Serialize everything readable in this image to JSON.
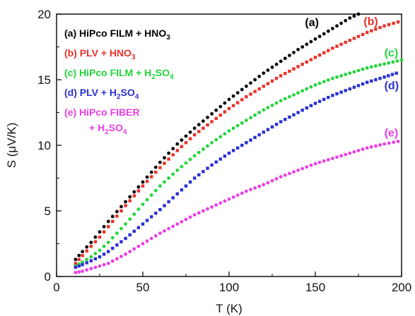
{
  "chart_data": {
    "type": "scatter",
    "xlabel": "T (K)",
    "ylabel": "S (μV/K)",
    "xlim": [
      0,
      200
    ],
    "ylim": [
      0,
      20
    ],
    "xticks": [
      0,
      50,
      100,
      150,
      200
    ],
    "yticks": [
      0,
      5,
      10,
      15,
      20
    ],
    "grid": false,
    "legend_placement": "top-left",
    "series": [
      {
        "id": "a",
        "name": "(a) HiPco FILM + HNO3",
        "legend_parts": [
          [
            "(a) HiPco FILM + HNO",
            "normal"
          ],
          [
            "3",
            "sub"
          ]
        ],
        "label": "(a)",
        "color": "#000000",
        "marker": "circle",
        "x": [
          11,
          15,
          20,
          25,
          30,
          40,
          50,
          60,
          70,
          80,
          90,
          100,
          110,
          120,
          130,
          140,
          150,
          160,
          170,
          175
        ],
        "y": [
          1.3,
          1.9,
          2.6,
          3.4,
          4.2,
          5.7,
          7.2,
          8.7,
          10.1,
          11.3,
          12.4,
          13.5,
          14.5,
          15.5,
          16.4,
          17.3,
          18.1,
          18.9,
          19.7,
          20.0
        ]
      },
      {
        "id": "b",
        "name": "(b) PLV + HNO3",
        "legend_parts": [
          [
            "(b) PLV + HNO",
            "normal"
          ],
          [
            "3",
            "sub"
          ]
        ],
        "label": "(b)",
        "color": "#e8332a",
        "marker": "square",
        "x": [
          11,
          15,
          20,
          25,
          30,
          40,
          50,
          60,
          70,
          80,
          90,
          100,
          110,
          120,
          130,
          140,
          150,
          160,
          170,
          180,
          190,
          198
        ],
        "y": [
          1.0,
          1.6,
          2.3,
          3.0,
          3.8,
          5.4,
          6.9,
          8.3,
          9.6,
          10.8,
          11.8,
          12.8,
          13.7,
          14.5,
          15.3,
          16.0,
          16.7,
          17.4,
          18.0,
          18.6,
          19.1,
          19.4
        ]
      },
      {
        "id": "c",
        "name": "(c) HiPco FILM + H2SO4",
        "legend_parts": [
          [
            "(c) HiPco FILM + H",
            "normal"
          ],
          [
            "2",
            "sub"
          ],
          [
            "SO",
            "normal"
          ],
          [
            "4",
            "sub"
          ]
        ],
        "label": "(c)",
        "color": "#22d63a",
        "marker": "circle",
        "x": [
          11,
          15,
          20,
          25,
          30,
          40,
          50,
          60,
          70,
          80,
          90,
          100,
          110,
          120,
          130,
          140,
          150,
          160,
          170,
          180,
          190,
          200
        ],
        "y": [
          0.8,
          1.1,
          1.5,
          2.0,
          2.6,
          4.0,
          5.5,
          6.9,
          8.1,
          9.2,
          10.2,
          11.1,
          11.9,
          12.7,
          13.4,
          14.0,
          14.6,
          15.1,
          15.5,
          15.9,
          16.2,
          16.5
        ]
      },
      {
        "id": "d",
        "name": "(d) PLV + H2SO4",
        "legend_parts": [
          [
            "(d) PLV + H",
            "normal"
          ],
          [
            "2",
            "sub"
          ],
          [
            "SO",
            "normal"
          ],
          [
            "4",
            "sub"
          ]
        ],
        "label": "(d)",
        "color": "#2a2fd4",
        "marker": "square",
        "x": [
          11,
          15,
          20,
          25,
          30,
          40,
          50,
          60,
          70,
          80,
          90,
          100,
          110,
          120,
          130,
          140,
          150,
          160,
          170,
          180,
          190,
          197
        ],
        "y": [
          0.7,
          0.9,
          1.2,
          1.5,
          1.9,
          2.9,
          4.0,
          5.1,
          6.3,
          7.5,
          8.5,
          9.4,
          10.2,
          11.0,
          11.8,
          12.5,
          13.2,
          13.8,
          14.3,
          14.8,
          15.2,
          15.5
        ]
      },
      {
        "id": "e",
        "name": "(e) HiPco FIBER + H2SO4",
        "legend_parts": [
          [
            "(e) HiPco FIBER",
            "normal"
          ]
        ],
        "legend_parts_line2": [
          [
            "+ H",
            "normal"
          ],
          [
            "2",
            "sub"
          ],
          [
            "SO",
            "normal"
          ],
          [
            "4",
            "sub"
          ]
        ],
        "label": "(e)",
        "color": "#ea3fe6",
        "marker": "circle",
        "x": [
          11,
          15,
          20,
          25,
          30,
          40,
          50,
          60,
          70,
          80,
          90,
          100,
          110,
          120,
          130,
          140,
          150,
          160,
          170,
          180,
          190,
          198
        ],
        "y": [
          0.3,
          0.4,
          0.6,
          0.8,
          1.0,
          1.7,
          2.5,
          3.3,
          4.0,
          4.7,
          5.3,
          5.9,
          6.5,
          7.0,
          7.6,
          8.1,
          8.6,
          9.0,
          9.4,
          9.8,
          10.1,
          10.3
        ]
      }
    ],
    "series_label_positions": {
      "a": [
        144,
        19.4
      ],
      "b": [
        178,
        19.5
      ],
      "c": [
        190,
        17.1
      ],
      "d": [
        190,
        14.6
      ],
      "e": [
        190,
        11.0
      ]
    }
  }
}
